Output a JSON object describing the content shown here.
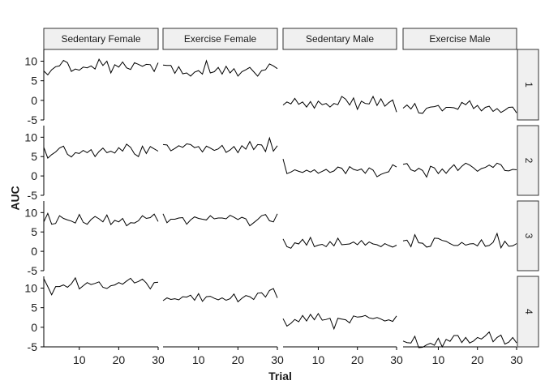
{
  "chart_data": {
    "type": "line",
    "xlabel": "Trial",
    "ylabel": "AUC",
    "xlim": [
      1,
      30
    ],
    "ylim": [
      -5,
      13
    ],
    "x_ticks": [
      10,
      20,
      30
    ],
    "y_ticks": [
      -5,
      0,
      5,
      10
    ],
    "x_tick_labels": [
      "10",
      "20",
      "30"
    ],
    "y_tick_labels": [
      "-5",
      "0",
      "5",
      "10"
    ],
    "columns": [
      "Sedentary Female",
      "Exercise Female",
      "Sedentary Male",
      "Exercise Male"
    ],
    "rows": [
      "1",
      "2",
      "3",
      "4"
    ],
    "x": [
      1,
      2,
      3,
      4,
      5,
      6,
      7,
      8,
      9,
      10,
      11,
      12,
      13,
      14,
      15,
      16,
      17,
      18,
      19,
      20,
      21,
      22,
      23,
      24,
      25,
      26,
      27,
      28,
      29,
      30
    ],
    "panels": [
      {
        "column": "Sedentary Female",
        "row": "1",
        "values": [
          7.5,
          6.5,
          7.8,
          8.6,
          8.8,
          10.2,
          9.6,
          7.4,
          8.0,
          7.7,
          8.5,
          8.3,
          8.8,
          8.0,
          10.5,
          8.9,
          10.0,
          7.0,
          9.1,
          8.5,
          9.8,
          8.3,
          7.9,
          9.6,
          9.2,
          8.7,
          9.2,
          9.1,
          7.4,
          9.6
        ]
      },
      {
        "column": "Exercise Female",
        "row": "1",
        "values": [
          9.0,
          8.9,
          8.9,
          6.9,
          8.6,
          6.8,
          7.0,
          6.2,
          7.2,
          7.6,
          6.7,
          10.1,
          7.0,
          7.3,
          8.4,
          6.7,
          8.7,
          7.0,
          8.1,
          6.2,
          7.3,
          7.8,
          8.4,
          7.3,
          6.2,
          7.6,
          7.8,
          9.3,
          8.8,
          8.1
        ]
      },
      {
        "column": "Sedentary Male",
        "row": "1",
        "values": [
          -1.2,
          -0.4,
          -0.9,
          0.5,
          -1.0,
          -0.4,
          -1.7,
          -0.3,
          -2.0,
          -0.2,
          -1.1,
          -0.8,
          -1.7,
          -0.8,
          -1.1,
          1.0,
          0.3,
          -1.2,
          0.6,
          -2.3,
          -0.2,
          -0.8,
          -0.9,
          1.0,
          -1.3,
          0.4,
          -1.5,
          -0.6,
          0.1,
          -3.0
        ]
      },
      {
        "column": "Exercise Male",
        "row": "1",
        "values": [
          -2.0,
          -1.2,
          -2.2,
          -0.8,
          -3.2,
          -3.3,
          -2.0,
          -1.7,
          -1.6,
          -1.3,
          -2.7,
          -1.8,
          -1.8,
          -1.9,
          -2.3,
          -0.5,
          -1.1,
          -0.1,
          -2.1,
          -1.3,
          -2.7,
          -1.8,
          -1.5,
          -2.8,
          -2.1,
          -3.1,
          -2.5,
          -1.8,
          -1.7,
          -3.2
        ]
      },
      {
        "column": "Sedentary Female",
        "row": "2",
        "values": [
          7.4,
          4.6,
          5.5,
          6.2,
          7.2,
          7.7,
          5.6,
          4.9,
          6.0,
          5.8,
          6.6,
          6.0,
          6.8,
          5.0,
          6.3,
          7.2,
          6.0,
          6.4,
          5.9,
          7.3,
          6.4,
          8.2,
          7.4,
          5.7,
          5.0,
          7.7,
          5.8,
          7.6,
          7.0,
          6.4
        ]
      },
      {
        "column": "Exercise Female",
        "row": "2",
        "values": [
          8.1,
          8.0,
          6.5,
          7.1,
          7.8,
          7.4,
          8.3,
          8.1,
          7.3,
          7.6,
          6.2,
          7.7,
          7.2,
          6.6,
          7.0,
          7.9,
          6.1,
          6.7,
          7.6,
          6.0,
          7.8,
          6.9,
          8.9,
          6.8,
          8.1,
          8.0,
          6.3,
          9.8,
          6.4,
          7.8
        ]
      },
      {
        "column": "Sedentary Male",
        "row": "2",
        "values": [
          4.4,
          0.6,
          1.0,
          1.6,
          1.2,
          0.9,
          1.5,
          1.0,
          1.6,
          0.7,
          1.2,
          1.7,
          0.9,
          1.3,
          2.3,
          2.0,
          0.6,
          2.4,
          1.7,
          1.4,
          1.8,
          0.7,
          2.1,
          1.5,
          -0.2,
          0.4,
          0.8,
          1.1,
          2.9,
          2.3
        ]
      },
      {
        "column": "Exercise Male",
        "row": "2",
        "values": [
          3.0,
          3.2,
          1.6,
          1.2,
          2.0,
          1.4,
          -0.3,
          2.5,
          2.1,
          0.6,
          1.8,
          0.7,
          1.9,
          2.9,
          1.4,
          2.5,
          3.3,
          2.8,
          2.1,
          1.2,
          1.9,
          2.2,
          2.8,
          2.2,
          3.3,
          2.9,
          1.4,
          1.3,
          1.7,
          1.6
        ]
      },
      {
        "column": "Sedentary Female",
        "row": "3",
        "values": [
          7.6,
          9.8,
          7.0,
          7.2,
          9.2,
          8.5,
          8.1,
          7.8,
          7.3,
          9.5,
          7.5,
          7.0,
          8.2,
          9.0,
          8.4,
          7.6,
          9.4,
          6.9,
          8.0,
          7.6,
          8.5,
          6.6,
          7.4,
          7.3,
          7.9,
          9.2,
          8.5,
          8.7,
          9.6,
          7.7
        ]
      },
      {
        "column": "Exercise Female",
        "row": "3",
        "values": [
          9.7,
          7.4,
          8.3,
          8.3,
          8.6,
          8.7,
          7.0,
          8.1,
          8.9,
          8.5,
          8.3,
          8.1,
          9.2,
          8.4,
          8.6,
          8.6,
          8.4,
          9.3,
          8.8,
          8.2,
          8.8,
          8.4,
          6.6,
          7.4,
          8.2,
          9.2,
          9.5,
          7.9,
          7.6,
          9.7
        ]
      },
      {
        "column": "Sedentary Male",
        "row": "3",
        "values": [
          3.2,
          1.2,
          0.8,
          2.2,
          1.9,
          3.1,
          1.6,
          3.6,
          1.2,
          1.6,
          1.8,
          1.2,
          2.5,
          1.4,
          3.4,
          1.7,
          1.8,
          1.9,
          2.4,
          1.7,
          2.8,
          1.6,
          2.4,
          1.9,
          1.7,
          1.2,
          2.0,
          1.5,
          1.1,
          1.6
        ]
      },
      {
        "column": "Exercise Male",
        "row": "3",
        "values": [
          2.7,
          2.9,
          1.2,
          4.3,
          2.2,
          2.1,
          1.1,
          1.3,
          3.4,
          3.3,
          2.8,
          2.6,
          2.0,
          1.5,
          1.5,
          2.3,
          1.6,
          1.9,
          2.0,
          1.4,
          3.0,
          1.3,
          1.5,
          2.3,
          4.6,
          0.9,
          2.6,
          1.3,
          1.4,
          2.0
        ]
      },
      {
        "column": "Sedentary Female",
        "row": "4",
        "values": [
          12.4,
          10.4,
          8.3,
          10.4,
          10.4,
          10.8,
          10.2,
          11.1,
          12.6,
          9.8,
          10.6,
          11.4,
          10.9,
          11.2,
          11.6,
          10.2,
          9.9,
          10.6,
          10.8,
          11.4,
          11.0,
          11.8,
          12.5,
          11.3,
          11.7,
          12.3,
          11.3,
          9.8,
          11.4,
          11.5
        ]
      },
      {
        "column": "Exercise Female",
        "row": "4",
        "values": [
          6.8,
          7.5,
          7.1,
          7.3,
          7.0,
          7.8,
          7.7,
          8.2,
          6.9,
          8.6,
          6.6,
          7.8,
          7.9,
          7.4,
          7.0,
          7.5,
          6.9,
          7.3,
          8.5,
          6.5,
          7.4,
          8.1,
          7.8,
          7.1,
          8.7,
          8.8,
          7.7,
          9.4,
          9.9,
          7.5
        ]
      },
      {
        "column": "Sedentary Male",
        "row": "4",
        "values": [
          2.2,
          0.3,
          1.0,
          2.0,
          1.4,
          3.0,
          1.6,
          3.3,
          1.9,
          3.5,
          1.8,
          2.0,
          2.3,
          -0.4,
          2.3,
          2.1,
          1.9,
          1.1,
          2.9,
          2.6,
          2.7,
          3.0,
          2.4,
          2.2,
          2.5,
          2.1,
          1.6,
          1.9,
          1.5,
          2.9
        ]
      },
      {
        "column": "Exercise Male",
        "row": "4",
        "values": [
          -3.5,
          -3.9,
          -4.0,
          -2.3,
          -5.2,
          -5.1,
          -4.5,
          -4.1,
          -4.6,
          -2.8,
          -5.0,
          -3.1,
          -3.6,
          -2.1,
          -2.1,
          -3.9,
          -2.6,
          -4.0,
          -3.5,
          -2.6,
          -3.0,
          -2.2,
          -1.2,
          -3.7,
          -2.6,
          -2.0,
          -4.3,
          -3.8,
          -2.6,
          -4.0
        ]
      }
    ]
  }
}
